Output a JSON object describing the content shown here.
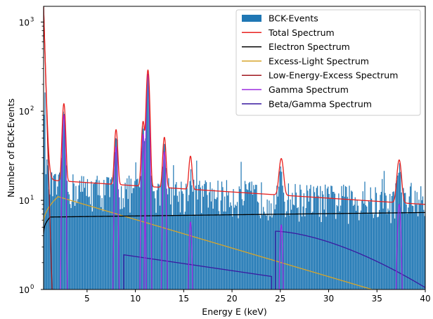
{
  "chart_data": {
    "type": "bar",
    "title": "",
    "xlabel": "Energy E (keV)",
    "ylabel": "Number of BCK-Events",
    "xlim": [
      0.5,
      40
    ],
    "ylim": [
      1,
      1500
    ],
    "yscale": "log",
    "xticks": [
      5,
      10,
      15,
      20,
      25,
      30,
      35,
      40
    ],
    "yticks": [
      {
        "value": 1,
        "base": "10",
        "exp": "0"
      },
      {
        "value": 10,
        "base": "10",
        "exp": "1"
      },
      {
        "value": 100,
        "base": "10",
        "exp": "2"
      },
      {
        "value": 1000,
        "base": "10",
        "exp": "3"
      }
    ],
    "grid": false,
    "legend_position": "top-right",
    "histogram": {
      "name": "BCK-Events",
      "color": "#1f77b4",
      "bin_width": 0.1,
      "peaks": [
        {
          "center": 2.6,
          "height": 90,
          "width": 0.12
        },
        {
          "center": 8.0,
          "height": 40,
          "width": 0.12
        },
        {
          "center": 10.8,
          "height": 55,
          "width": 0.12
        },
        {
          "center": 11.3,
          "height": 260,
          "width": 0.12
        },
        {
          "center": 13.0,
          "height": 35,
          "width": 0.12
        },
        {
          "center": 15.7,
          "height": 8,
          "width": 0.12
        },
        {
          "center": 25.1,
          "height": 9,
          "width": 0.15
        },
        {
          "center": 37.3,
          "height": 15,
          "width": 0.18
        }
      ]
    },
    "series": [
      {
        "name": "Total Spectrum",
        "color": "#e8211f"
      },
      {
        "name": "Electron Spectrum",
        "color": "#000000"
      },
      {
        "name": "Excess-Light Spectrum",
        "color": "#d7a52b"
      },
      {
        "name": "Low-Energy-Excess Spectrum",
        "color": "#a0181f"
      },
      {
        "name": "Gamma Spectrum",
        "color": "#9b2be0"
      },
      {
        "name": "Beta/Gamma Spectrum",
        "color": "#3a1aa0"
      }
    ],
    "electron": {
      "low": 6.5,
      "high": 7.3,
      "rise_start": 0.5,
      "rise_end": 1.2
    },
    "excess_light": {
      "peak_x": 2.0,
      "peak_y": 11,
      "end_x": 34.5,
      "end_y": 1.0,
      "rise_start_y": 5.5
    },
    "low_energy_excess": {
      "start_y": 1500,
      "decay": 0.12
    },
    "beta_gamma": [
      {
        "x_start": 8.8,
        "x_end": 24.1,
        "y_start": 2.45,
        "y_end": 1.4
      },
      {
        "x_start": 24.5,
        "x_end": 40,
        "y_start": 4.5,
        "y_end": 1.05
      }
    ],
    "gamma_lines": [
      {
        "center": 2.6,
        "height": 90,
        "width": 0.12
      },
      {
        "center": 8.0,
        "height": 40,
        "width": 0.12
      },
      {
        "center": 10.8,
        "height": 55,
        "width": 0.12
      },
      {
        "center": 11.3,
        "height": 260,
        "width": 0.12
      },
      {
        "center": 13.0,
        "height": 35,
        "width": 0.12
      },
      {
        "center": 15.7,
        "height": 5.7,
        "width": 0.12
      },
      {
        "center": 25.1,
        "height": 5.3,
        "width": 0.12
      },
      {
        "center": 37.3,
        "height": 9,
        "width": 0.15
      }
    ],
    "total_peaks": [
      {
        "center": 2.6,
        "height": 105,
        "width": 0.14
      },
      {
        "center": 8.0,
        "height": 47,
        "width": 0.14
      },
      {
        "center": 10.8,
        "height": 62,
        "width": 0.14
      },
      {
        "center": 11.3,
        "height": 275,
        "width": 0.14
      },
      {
        "center": 13.0,
        "height": 37,
        "width": 0.14
      },
      {
        "center": 15.7,
        "height": 18,
        "width": 0.14
      },
      {
        "center": 25.1,
        "height": 18,
        "width": 0.2
      },
      {
        "center": 37.3,
        "height": 19,
        "width": 0.2
      }
    ],
    "total_baseline": {
      "start_y": 17,
      "end_y": 9.0
    }
  }
}
